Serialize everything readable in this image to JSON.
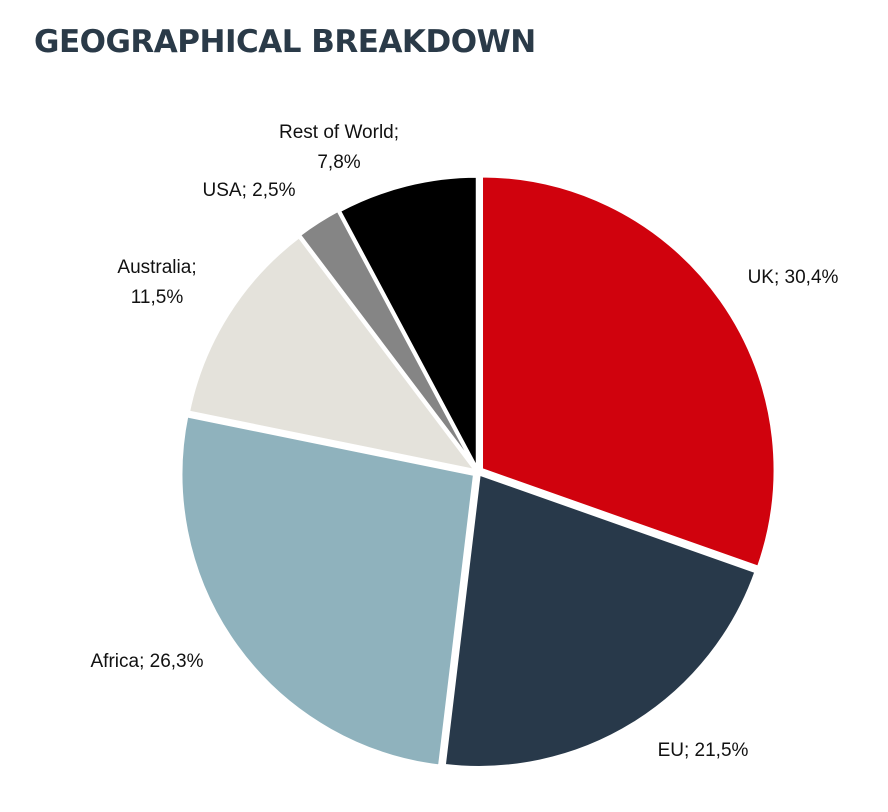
{
  "chart_data": {
    "type": "pie",
    "title": "GEOGRAPHICAL BREAKDOWN",
    "categories": [
      "UK",
      "EU",
      "Africa",
      "Australia",
      "USA",
      "Rest of World"
    ],
    "values": [
      30.4,
      21.5,
      26.3,
      11.5,
      2.5,
      7.8
    ],
    "slices": [
      {
        "name": "UK",
        "value": 30.4,
        "color": "#d0020d",
        "label_lines": [
          "UK; 30,4%"
        ]
      },
      {
        "name": "EU",
        "value": 21.5,
        "color": "#28394a",
        "label_lines": [
          "EU; 21,5%"
        ]
      },
      {
        "name": "Africa",
        "value": 26.3,
        "color": "#8fb2bd",
        "label_lines": [
          "Africa; 26,3%"
        ]
      },
      {
        "name": "Australia",
        "value": 11.5,
        "color": "#e4e2db",
        "label_lines": [
          "Australia;",
          "11,5%"
        ]
      },
      {
        "name": "USA",
        "value": 2.5,
        "color": "#858585",
        "label_lines": [
          "USA; 2,5%"
        ]
      },
      {
        "name": "Rest of World",
        "value": 7.8,
        "color": "#000000",
        "label_lines": [
          "Rest of World;",
          "7,8%"
        ]
      }
    ],
    "start": "top",
    "direction": "clockwise",
    "legend": "none",
    "data_labels": "outside"
  },
  "colors": {
    "title": "#2a3a48",
    "background": "#ffffff",
    "slice_border": "#ffffff"
  }
}
